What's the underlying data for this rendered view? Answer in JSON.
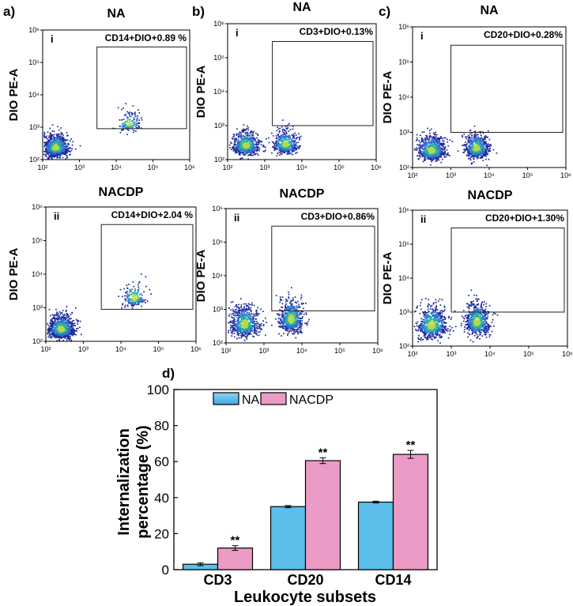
{
  "panel_labels": [
    "a)",
    "b)",
    "c)",
    "d)"
  ],
  "chart_data": [
    {
      "type": "scatter",
      "id": "a-i",
      "panel": "a)",
      "roman": "i",
      "title": "NA",
      "gate_label": "CD14+DIO+0.89 %",
      "ylabel": "DIO PE-A",
      "xscale": "log",
      "xlim": [
        100,
        1000000
      ],
      "ylim": [
        100,
        1000000
      ],
      "x_ticks": [
        "10²",
        "10³",
        "10⁴",
        "10⁵",
        "10⁶"
      ],
      "y_ticks": [
        "10²",
        "10³",
        "10⁴",
        "10⁵",
        "10⁶"
      ],
      "gate_x": [
        3000,
        1000000
      ],
      "gate_y": [
        900,
        300000
      ],
      "clusters": [
        {
          "cx": 220,
          "cy": 230,
          "sx": 2.0,
          "sy": 2.0,
          "n": 900
        },
        {
          "cx": 22000,
          "cy": 1300,
          "sx": 1.8,
          "sy": 1.9,
          "n": 160
        }
      ]
    },
    {
      "type": "scatter",
      "id": "b-i",
      "panel": "b)",
      "roman": "i",
      "title": "NA",
      "gate_label": "CD3+DIO+0.13%",
      "ylabel": "DIO PE-A",
      "xscale": "log",
      "xlim": [
        100,
        1000000
      ],
      "ylim": [
        100,
        1000000
      ],
      "x_ticks": [
        "10²",
        "10³",
        "10⁴",
        "10⁵",
        "10⁶"
      ],
      "y_ticks": [
        "10²",
        "10³",
        "10⁴",
        "10⁵",
        "10⁶"
      ],
      "gate_x": [
        1600,
        1000000
      ],
      "gate_y": [
        1000,
        300000
      ],
      "clusters": [
        {
          "cx": 300,
          "cy": 260,
          "sx": 2.1,
          "sy": 2.0,
          "n": 650
        },
        {
          "cx": 3500,
          "cy": 280,
          "sx": 1.9,
          "sy": 2.0,
          "n": 450
        }
      ]
    },
    {
      "type": "scatter",
      "id": "c-i",
      "panel": "c)",
      "roman": "i",
      "title": "NA",
      "gate_label": "CD20+DIO+0.28%",
      "ylabel": "DIO PE-A",
      "xscale": "log",
      "xlim": [
        100,
        1000000
      ],
      "ylim": [
        100,
        1000000
      ],
      "x_ticks": [
        "10²",
        "10³",
        "10⁴",
        "10⁵",
        "10⁶"
      ],
      "y_ticks": [
        "10²",
        "10³",
        "10⁴",
        "10⁵",
        "10⁶"
      ],
      "gate_x": [
        1000,
        1000000
      ],
      "gate_y": [
        1000,
        300000
      ],
      "clusters": [
        {
          "cx": 300,
          "cy": 300,
          "sx": 2.1,
          "sy": 2.1,
          "n": 700
        },
        {
          "cx": 4500,
          "cy": 350,
          "sx": 1.8,
          "sy": 2.0,
          "n": 650
        }
      ]
    },
    {
      "type": "scatter",
      "id": "a-ii",
      "panel": "a)",
      "roman": "ii",
      "title": "NACDP",
      "gate_label": "CD14+DIO+2.04 %",
      "ylabel": "DIO PE-A",
      "xscale": "log",
      "xlim": [
        100,
        1000000
      ],
      "ylim": [
        100,
        1000000
      ],
      "x_ticks": [
        "10²",
        "10³",
        "10⁴",
        "10⁵",
        "10⁶"
      ],
      "y_ticks": [
        "10²",
        "10³",
        "10⁴",
        "10⁵",
        "10⁶"
      ],
      "gate_x": [
        3000,
        1000000
      ],
      "gate_y": [
        900,
        300000
      ],
      "clusters": [
        {
          "cx": 250,
          "cy": 230,
          "sx": 2.0,
          "sy": 2.0,
          "n": 1000
        },
        {
          "cx": 22000,
          "cy": 2000,
          "sx": 1.8,
          "sy": 2.0,
          "n": 200
        }
      ]
    },
    {
      "type": "scatter",
      "id": "b-ii",
      "panel": "b)",
      "roman": "ii",
      "title": "NACDP",
      "gate_label": "CD3+DIO+0.86%",
      "ylabel": "DIO PE-A",
      "xscale": "log",
      "xlim": [
        100,
        1000000
      ],
      "ylim": [
        100,
        1000000
      ],
      "x_ticks": [
        "10²",
        "10³",
        "10⁴",
        "10⁵",
        "10⁶"
      ],
      "y_ticks": [
        "10²",
        "10³",
        "10⁴",
        "10⁵",
        "10⁶"
      ],
      "gate_x": [
        1600,
        1000000
      ],
      "gate_y": [
        900,
        300000
      ],
      "clusters": [
        {
          "cx": 300,
          "cy": 350,
          "sx": 2.1,
          "sy": 2.6,
          "n": 700
        },
        {
          "cx": 5000,
          "cy": 500,
          "sx": 1.8,
          "sy": 2.8,
          "n": 650
        }
      ]
    },
    {
      "type": "scatter",
      "id": "c-ii",
      "panel": "c)",
      "roman": "ii",
      "title": "NACDP",
      "gate_label": "CD20+DIO+1.30%",
      "ylabel": "DIO PE-A",
      "xscale": "log",
      "xlim": [
        100,
        1000000
      ],
      "ylim": [
        100,
        1000000
      ],
      "x_ticks": [
        "10²",
        "10³",
        "10⁴",
        "10⁵",
        "10⁶"
      ],
      "y_ticks": [
        "10²",
        "10³",
        "10⁴",
        "10⁵",
        "10⁶"
      ],
      "gate_x": [
        1000,
        1000000
      ],
      "gate_y": [
        1000,
        300000
      ],
      "clusters": [
        {
          "cx": 300,
          "cy": 400,
          "sx": 2.2,
          "sy": 2.7,
          "n": 750
        },
        {
          "cx": 4500,
          "cy": 500,
          "sx": 1.8,
          "sy": 2.8,
          "n": 700
        }
      ]
    },
    {
      "type": "bar",
      "id": "d",
      "panel": "d)",
      "categories": [
        "CD3",
        "CD20",
        "CD14"
      ],
      "series": [
        {
          "name": "NA",
          "values": [
            3,
            35,
            37.5
          ],
          "errors": [
            0.8,
            0.6,
            0.5
          ],
          "color": "#5bbfe9",
          "stars": [
            "",
            "",
            ""
          ]
        },
        {
          "name": "NACDP",
          "values": [
            12,
            60.5,
            64
          ],
          "errors": [
            1.3,
            1.6,
            2.2
          ],
          "color": "#ec9ac6",
          "stars": [
            "**",
            "**",
            "**"
          ]
        }
      ],
      "xlabel": "Leukocyte subsets",
      "ylabel_lines": [
        "Internalization",
        "percentage (%)"
      ],
      "ylim": [
        0,
        100
      ],
      "yticks": [
        0,
        20,
        40,
        60,
        80,
        100
      ],
      "legend_position": "top-left"
    }
  ]
}
